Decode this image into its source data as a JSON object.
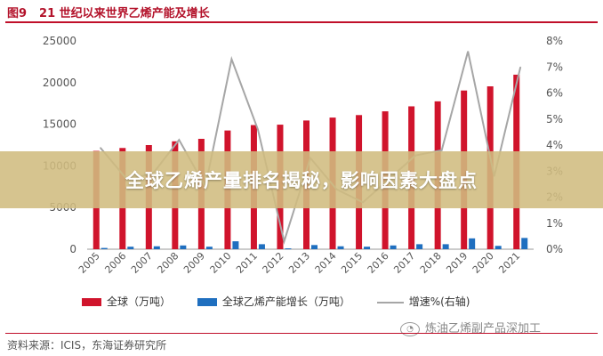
{
  "header": {
    "figure_number": "图9",
    "title": "21 世纪以来世界乙烯产能及增长"
  },
  "chart_data": {
    "type": "bar",
    "categories": [
      "2005",
      "2006",
      "2007",
      "2008",
      "2009",
      "2010",
      "2011",
      "2012",
      "2013",
      "2014",
      "2015",
      "2016",
      "2017",
      "2018",
      "2019",
      "2020",
      "2021"
    ],
    "series": [
      {
        "name": "全球（万吨）",
        "type": "bar",
        "axis": "left",
        "color": "#d0142c",
        "values": [
          11800,
          12150,
          12500,
          12950,
          13250,
          14250,
          14900,
          14950,
          15450,
          15800,
          16100,
          16550,
          17150,
          17750,
          19050,
          19550,
          20950
        ]
      },
      {
        "name": "全球乙烯产能增长（万吨）",
        "type": "bar",
        "axis": "left",
        "color": "#1f6fbf",
        "values": [
          150,
          300,
          350,
          450,
          300,
          950,
          600,
          100,
          500,
          350,
          300,
          450,
          600,
          600,
          1300,
          400,
          1350
        ]
      },
      {
        "name": "增速%(右轴)",
        "type": "line",
        "axis": "right",
        "color": "#a6a6a6",
        "values": [
          3.9,
          2.7,
          2.9,
          4.2,
          2.4,
          7.3,
          4.6,
          0.3,
          3.5,
          2.3,
          1.8,
          2.7,
          3.6,
          3.8,
          7.6,
          2.8,
          7.0
        ]
      }
    ],
    "y_left": {
      "min": 0,
      "max": 25000,
      "ticks": [
        "0",
        "5000",
        "10000",
        "15000",
        "20000",
        "25000"
      ]
    },
    "y_right": {
      "min": 0,
      "max": 8,
      "ticks": [
        "0%",
        "1%",
        "2%",
        "3%",
        "4%",
        "5%",
        "6%",
        "7%",
        "8%"
      ]
    },
    "grid": false,
    "legend_position": "bottom"
  },
  "source": "资料来源：ICIS，东海证券研究所",
  "watermark": "炼油乙烯副产品深加工",
  "banner": "全球乙烯产量排名揭秘，影响因素大盘点"
}
